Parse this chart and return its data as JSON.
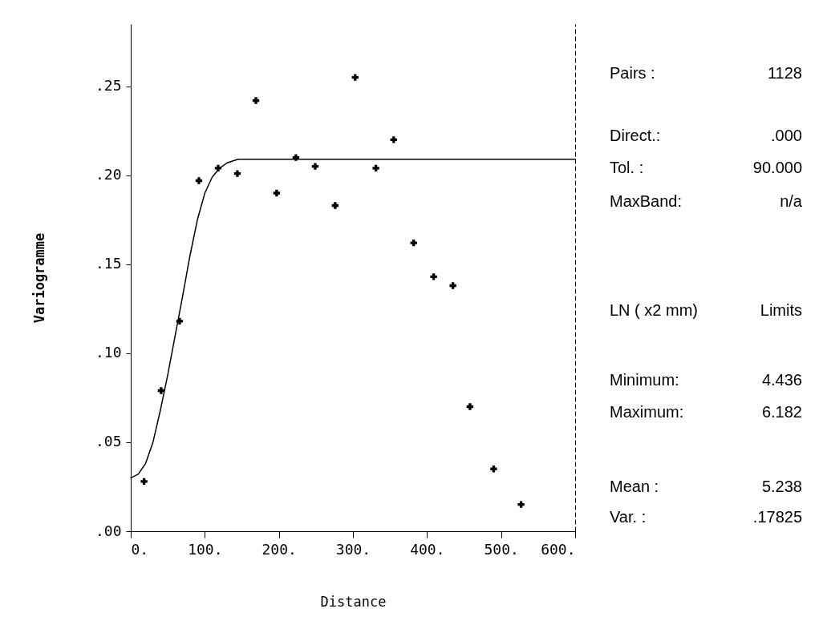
{
  "chart_data": {
    "type": "scatter",
    "xlabel": "Distance",
    "ylabel": "Variogramme",
    "xlim": [
      0,
      600
    ],
    "ylim": [
      0,
      0.285
    ],
    "xticks": [
      {
        "value": 0,
        "label": "0."
      },
      {
        "value": 100,
        "label": "100."
      },
      {
        "value": 200,
        "label": "200."
      },
      {
        "value": 300,
        "label": "300."
      },
      {
        "value": 400,
        "label": "400."
      },
      {
        "value": 500,
        "label": "500."
      },
      {
        "value": 600,
        "label": "600."
      }
    ],
    "yticks": [
      {
        "value": 0,
        "label": ".00"
      },
      {
        "value": 0.05,
        "label": ".05"
      },
      {
        "value": 0.1,
        "label": ".10"
      },
      {
        "value": 0.15,
        "label": ".15"
      },
      {
        "value": 0.2,
        "label": ".20"
      },
      {
        "value": 0.25,
        "label": ".25"
      }
    ],
    "series": [
      {
        "type": "line",
        "color": "#000000",
        "line_style": "solid",
        "marker": "none",
        "x": [
          0,
          10,
          20,
          30,
          40,
          50,
          60,
          70,
          80,
          90,
          100,
          110,
          120,
          130,
          145,
          600
        ],
        "values": [
          0.03,
          0.032,
          0.038,
          0.05,
          0.068,
          0.088,
          0.11,
          0.132,
          0.155,
          0.175,
          0.19,
          0.199,
          0.204,
          0.207,
          0.209,
          0.209
        ]
      },
      {
        "type": "scatter",
        "color": "#000000",
        "marker": "cross",
        "x": [
          18,
          41,
          66,
          92,
          118,
          144,
          169,
          197,
          223,
          249,
          276,
          303,
          331,
          355,
          382,
          409,
          435,
          458,
          490,
          527
        ],
        "values": [
          0.028,
          0.079,
          0.118,
          0.197,
          0.204,
          0.201,
          0.242,
          0.19,
          0.21,
          0.205,
          0.183,
          0.255,
          0.204,
          0.22,
          0.162,
          0.143,
          0.138,
          0.07,
          0.035,
          0.015
        ]
      }
    ],
    "grid": false,
    "annotations": [
      "Pairs : 1128",
      "Direct.: .000",
      "Tol. : 90.000",
      "MaxBand: n/a",
      "LN ( x2 mm) Limits",
      "Minimum: 4.436",
      "Maximum: 6.182",
      "Mean : 5.238",
      "Var. : .17825"
    ]
  }
}
